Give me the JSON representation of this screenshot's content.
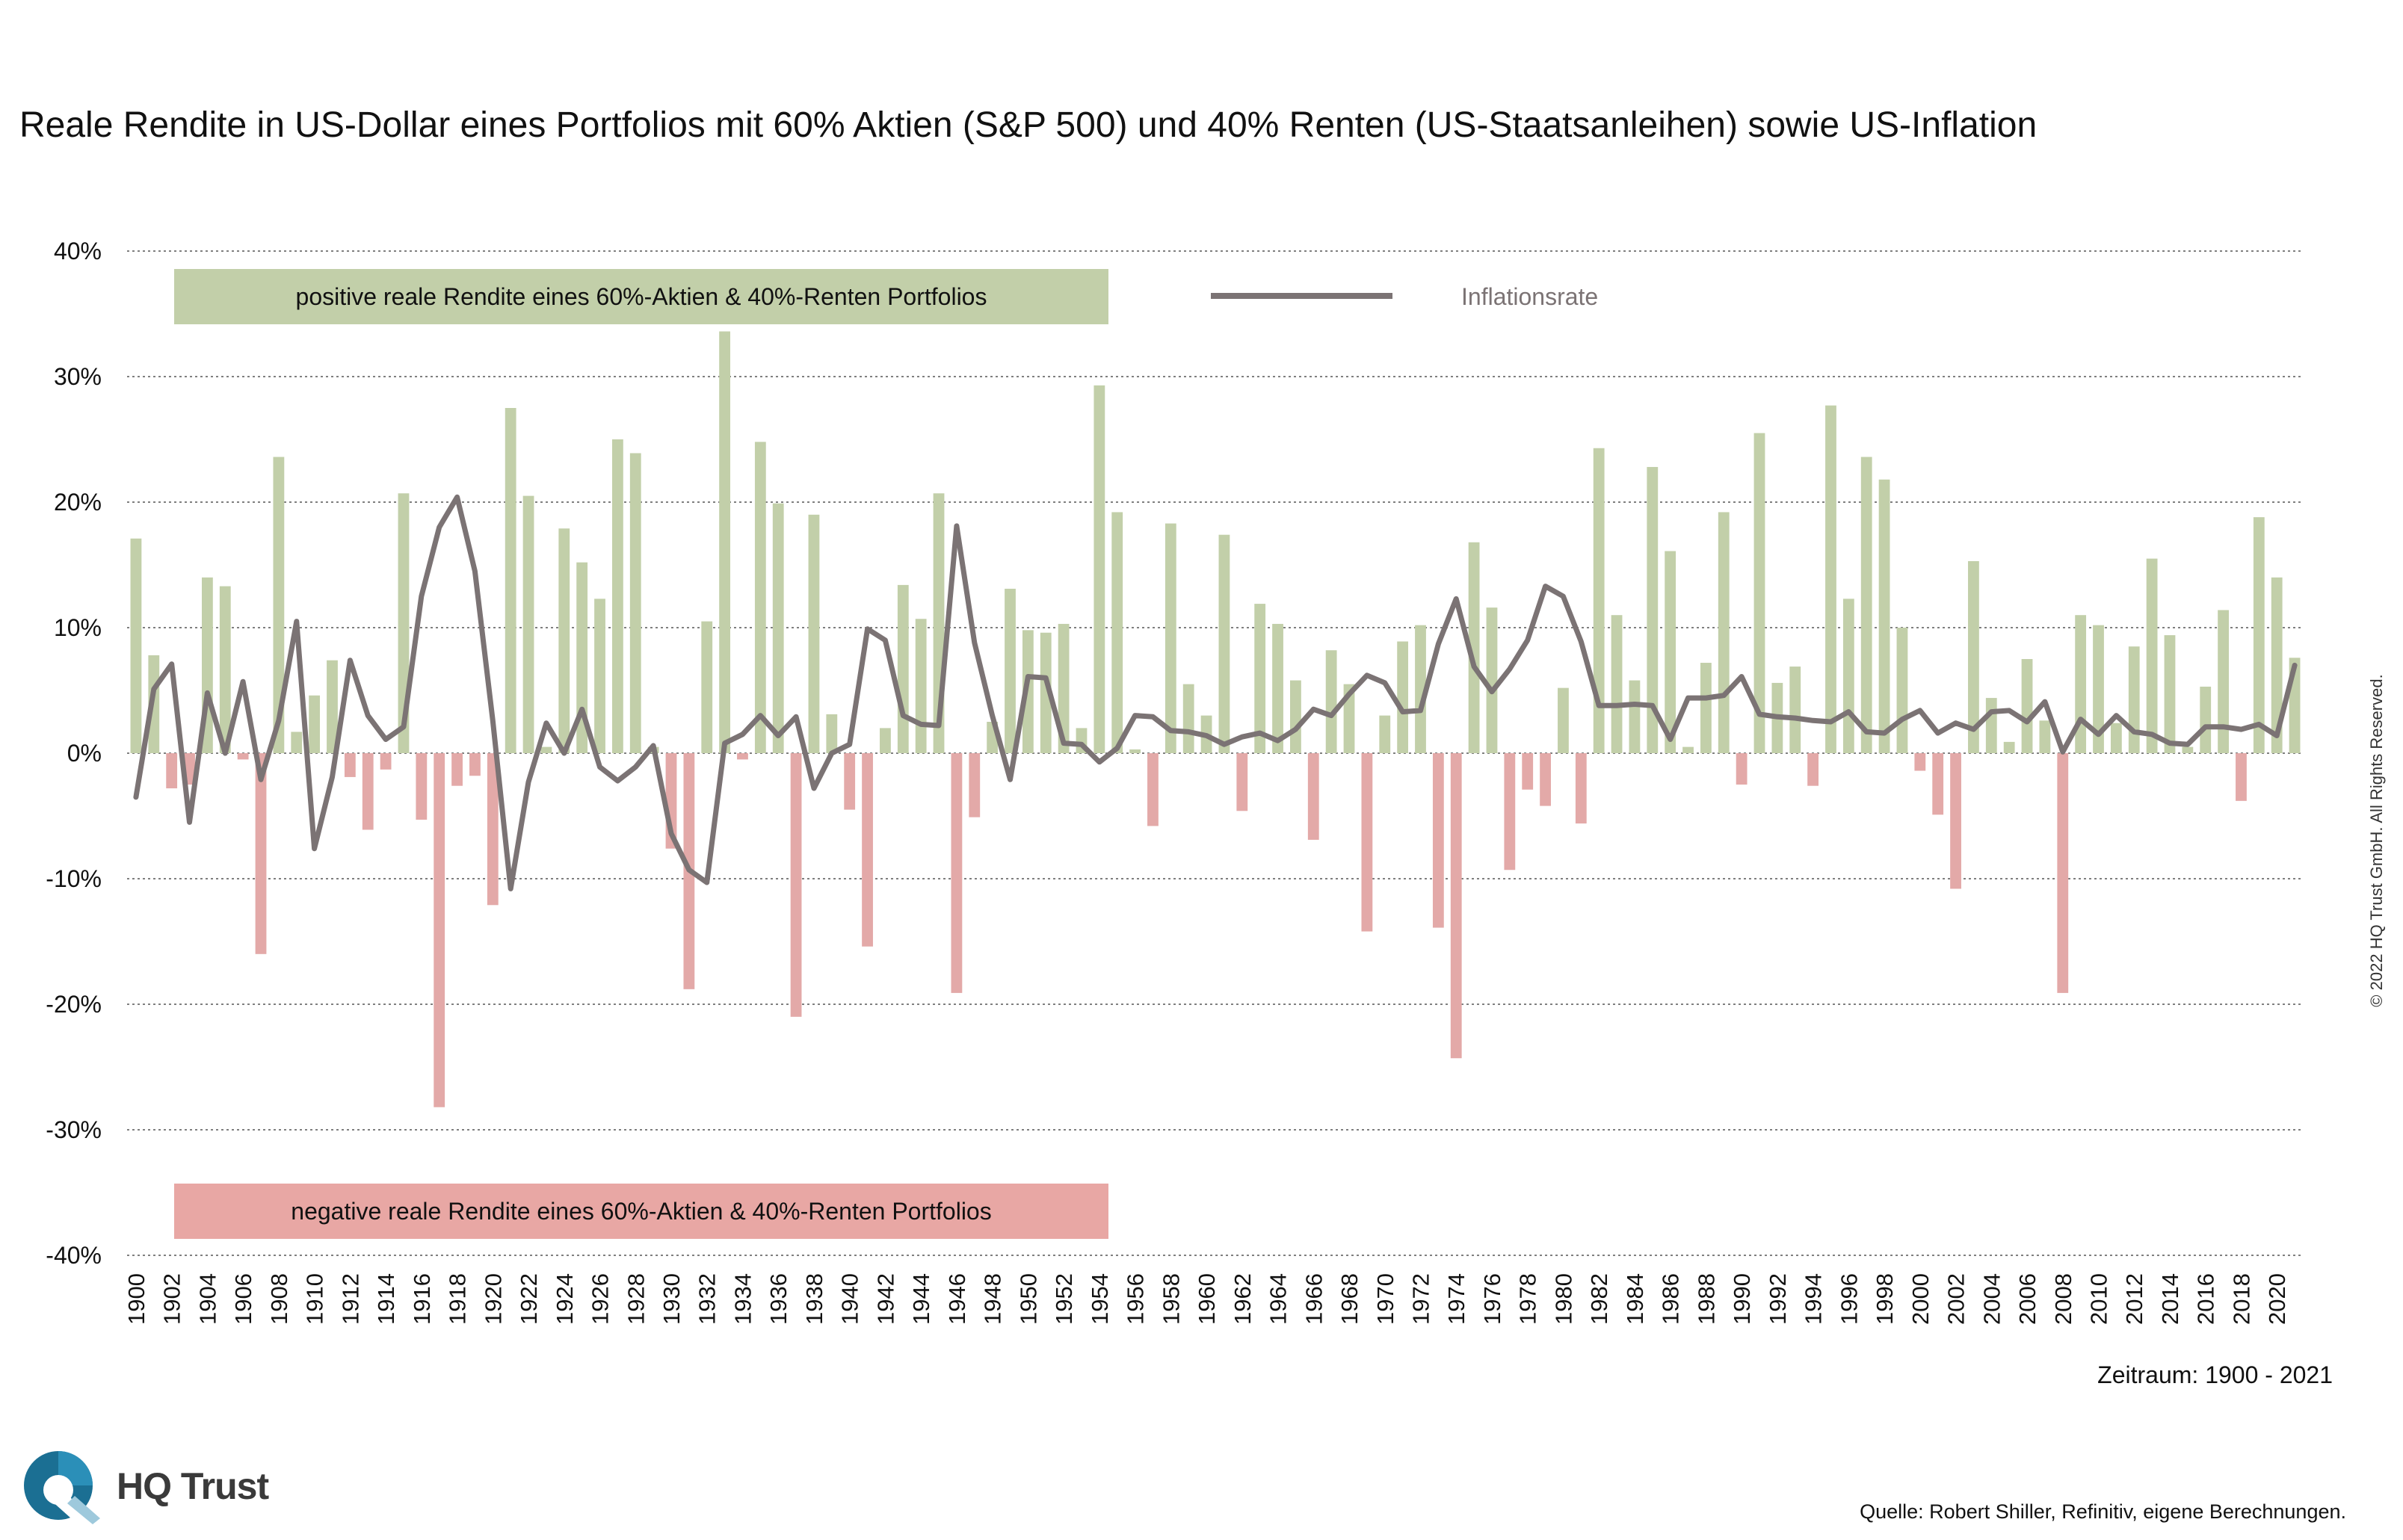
{
  "title": "Reale Rendite in US-Dollar eines Portfolios mit 60% Aktien (S&P 500) und 40% Renten (US-Staatsanleihen) sowie US-Inflation",
  "period": "Zeitraum: 1900 - 2021",
  "source": "Quelle: Robert Shiller, Refinitiv, eigene Berechnungen.",
  "copyright": "© 2022 HQ Trust GmbH. All Rights Reserved.",
  "brand": "HQ Trust",
  "colors": {
    "positive_bar": "#c2cfa9",
    "negative_bar": "#e3a9a8",
    "inflation_line": "#7b7374",
    "gridline": "#555555",
    "brand_blue": "#1b6f93"
  },
  "chart_data": {
    "type": "bar",
    "years": [
      1900,
      1901,
      1902,
      1903,
      1904,
      1905,
      1906,
      1907,
      1908,
      1909,
      1910,
      1911,
      1912,
      1913,
      1914,
      1915,
      1916,
      1917,
      1918,
      1919,
      1920,
      1921,
      1922,
      1923,
      1924,
      1925,
      1926,
      1927,
      1928,
      1929,
      1930,
      1931,
      1932,
      1933,
      1934,
      1935,
      1936,
      1937,
      1938,
      1939,
      1940,
      1941,
      1942,
      1943,
      1944,
      1945,
      1946,
      1947,
      1948,
      1949,
      1950,
      1951,
      1952,
      1953,
      1954,
      1955,
      1956,
      1957,
      1958,
      1959,
      1960,
      1961,
      1962,
      1963,
      1964,
      1965,
      1966,
      1967,
      1968,
      1969,
      1970,
      1971,
      1972,
      1973,
      1974,
      1975,
      1976,
      1977,
      1978,
      1979,
      1980,
      1981,
      1982,
      1983,
      1984,
      1985,
      1986,
      1987,
      1988,
      1989,
      1990,
      1991,
      1992,
      1993,
      1994,
      1995,
      1996,
      1997,
      1998,
      1999,
      2000,
      2001,
      2002,
      2003,
      2004,
      2005,
      2006,
      2007,
      2008,
      2009,
      2010,
      2011,
      2012,
      2013,
      2014,
      2015,
      2016,
      2017,
      2018,
      2019,
      2020,
      2021
    ],
    "tick_labels": [
      "1900",
      "1902",
      "1904",
      "1906",
      "1908",
      "1910",
      "1912",
      "1914",
      "1916",
      "1918",
      "1920",
      "1922",
      "1924",
      "1926",
      "1928",
      "1930",
      "1932",
      "1934",
      "1936",
      "1938",
      "1940",
      "1942",
      "1944",
      "1946",
      "1948",
      "1950",
      "1952",
      "1954",
      "1956",
      "1958",
      "1960",
      "1962",
      "1964",
      "1966",
      "1968",
      "1970",
      "1972",
      "1974",
      "1976",
      "1978",
      "1980",
      "1982",
      "1984",
      "1986",
      "1988",
      "1990",
      "1992",
      "1994",
      "1996",
      "1998",
      "2000",
      "2002",
      "2004",
      "2006",
      "2008",
      "2010",
      "2012",
      "2014",
      "2016",
      "2018",
      "2020"
    ],
    "series": [
      {
        "type": "bar",
        "values": [
          17.1,
          7.8,
          -2.8,
          -2.5,
          14.0,
          13.3,
          -0.5,
          -16.0,
          23.6,
          1.7,
          4.6,
          7.4,
          -1.9,
          -6.1,
          -1.3,
          20.7,
          -5.3,
          -28.2,
          -2.6,
          -1.8,
          -12.1,
          27.5,
          20.5,
          0.5,
          17.9,
          15.2,
          12.3,
          25.0,
          23.9,
          0.5,
          -7.6,
          -18.8,
          10.5,
          33.6,
          -0.5,
          24.8,
          19.9,
          -21.0,
          19.0,
          3.1,
          -4.5,
          -15.4,
          2.0,
          13.4,
          10.7,
          20.7,
          -19.1,
          -5.1,
          2.5,
          13.1,
          9.8,
          9.6,
          10.3,
          2.0,
          29.3,
          19.2,
          0.3,
          -5.8,
          18.3,
          5.5,
          3.0,
          17.4,
          -4.6,
          11.9,
          10.3,
          5.8,
          -6.9,
          8.2,
          5.5,
          -14.2,
          3.0,
          8.9,
          10.2,
          -13.9,
          -24.3,
          16.8,
          11.6,
          -9.3,
          -2.9,
          -4.2,
          5.2,
          -5.6,
          24.3,
          11.0,
          5.8,
          22.8,
          16.1,
          0.5,
          7.2,
          19.2,
          -2.5,
          25.5,
          5.6,
          6.9,
          -2.6,
          27.7,
          12.3,
          23.6,
          21.8,
          10.0,
          -1.4,
          -4.9,
          -10.8,
          15.3,
          4.4,
          0.9,
          7.5,
          2.6,
          -19.1,
          11.0,
          10.2,
          2.4,
          8.5,
          15.5,
          9.4,
          0.5,
          5.3,
          11.4,
          -3.8,
          18.8,
          14.0,
          7.6
        ]
      },
      {
        "type": "line",
        "name": "Inflationsrate",
        "values": [
          -3.5,
          5.1,
          7.1,
          -5.5,
          4.8,
          0.0,
          5.7,
          -2.1,
          2.6,
          10.5,
          -7.6,
          -1.9,
          7.4,
          3.0,
          1.1,
          2.1,
          12.5,
          18.0,
          20.4,
          14.5,
          2.6,
          -10.8,
          -2.3,
          2.4,
          0.0,
          3.5,
          -1.1,
          -2.2,
          -1.1,
          0.6,
          -6.4,
          -9.3,
          -10.3,
          0.8,
          1.5,
          3.0,
          1.4,
          2.9,
          -2.8,
          0.0,
          0.7,
          9.9,
          9.0,
          3.0,
          2.3,
          2.2,
          18.1,
          8.8,
          3.0,
          -2.1,
          6.1,
          6.0,
          0.8,
          0.7,
          -0.7,
          0.4,
          3.0,
          2.9,
          1.8,
          1.7,
          1.4,
          0.7,
          1.3,
          1.6,
          1.0,
          1.9,
          3.5,
          3.0,
          4.7,
          6.2,
          5.6,
          3.3,
          3.4,
          8.7,
          12.3,
          6.9,
          4.9,
          6.7,
          9.0,
          13.3,
          12.5,
          8.9,
          3.8,
          3.8,
          3.9,
          3.8,
          1.1,
          4.4,
          4.4,
          4.6,
          6.1,
          3.1,
          2.9,
          2.8,
          2.6,
          2.5,
          3.3,
          1.7,
          1.6,
          2.7,
          3.4,
          1.6,
          2.4,
          1.9,
          3.3,
          3.4,
          2.5,
          4.1,
          0.1,
          2.7,
          1.5,
          3.0,
          1.7,
          1.5,
          0.8,
          0.7,
          2.1,
          2.1,
          1.9,
          2.3,
          1.4,
          7.0
        ]
      }
    ],
    "ylim": [
      -40,
      40
    ],
    "yticks": [
      40,
      30,
      20,
      10,
      0,
      -10,
      -20,
      -30,
      -40
    ],
    "ytick_labels": [
      "40%",
      "30%",
      "20%",
      "10%",
      "0%",
      "-10%",
      "-20%",
      "-30%",
      "-40%"
    ],
    "grid": true,
    "legend_inflation": "Inflationsrate",
    "legend_positive": "positive reale Rendite eines 60%-Aktien & 40%-Renten Portfolios",
    "legend_negative": "negative reale Rendite eines 60%-Aktien & 40%-Renten Portfolios"
  }
}
